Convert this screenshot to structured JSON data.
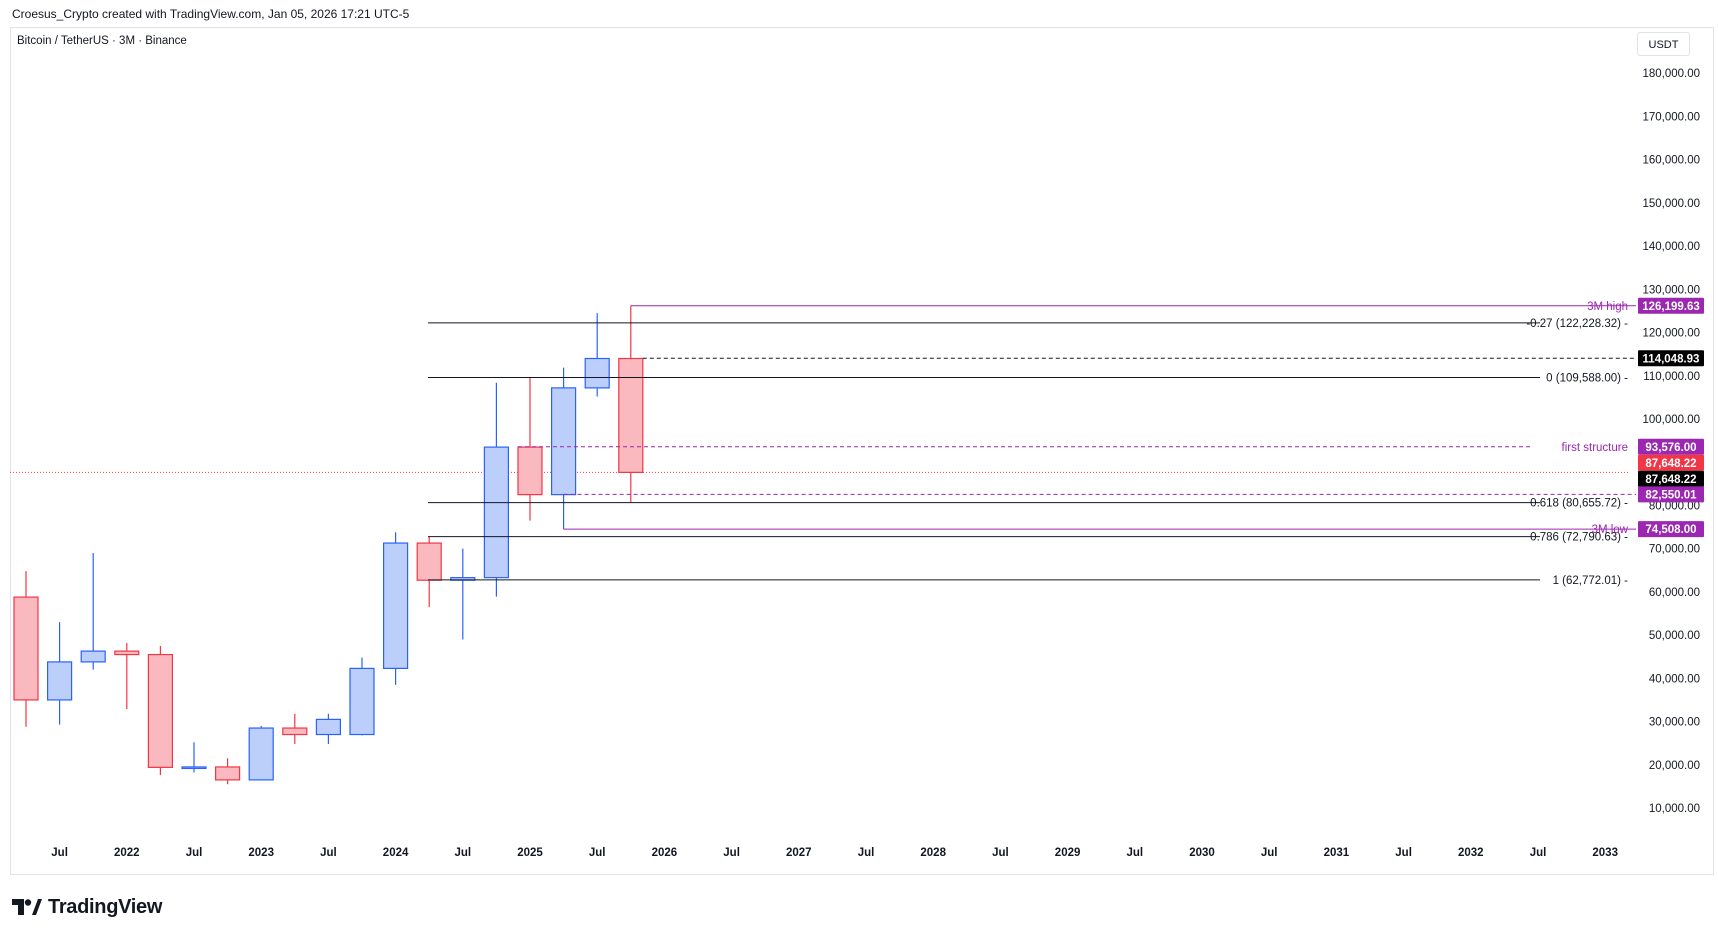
{
  "header": {
    "author_line": "Croesus_Crypto created with TradingView.com, Jan 05, 2026 17:21 UTC-5"
  },
  "chart_header": {
    "symbol_line": "Bitcoin / TetherUS · 3M · Binance",
    "currency": "USDT"
  },
  "footer": {
    "logo_text": "TradingView"
  },
  "colors": {
    "up_fill": "#bccefa",
    "up_stroke": "#2962ff",
    "down_fill": "#f9b9be",
    "down_stroke": "#f23645",
    "level_black": "#131722",
    "purple": "#9c27b0",
    "price_red": "#f23645"
  },
  "chart_data": {
    "type": "candlestick",
    "timeframe": "3M",
    "y_axis": {
      "min": 0,
      "max": 185000,
      "ticks": [
        10000,
        20000,
        30000,
        40000,
        50000,
        60000,
        70000,
        80000,
        90000,
        100000,
        110000,
        120000,
        130000,
        140000,
        150000,
        160000,
        170000,
        180000
      ],
      "tick_labels": [
        "10,000.00",
        "20,000.00",
        "30,000.00",
        "40,000.00",
        "50,000.00",
        "60,000.00",
        "70,000.00",
        "80,000.00",
        "90,000.00",
        "100,000.00",
        "110,000.00",
        "120,000.00",
        "130,000.00",
        "140,000.00",
        "150,000.00",
        "160,000.00",
        "170,000.00",
        "180,000.00"
      ]
    },
    "x_axis": {
      "labels": [
        {
          "label": "Jul",
          "idx": 1
        },
        {
          "label": "2022",
          "idx": 3
        },
        {
          "label": "Jul",
          "idx": 5
        },
        {
          "label": "2023",
          "idx": 7
        },
        {
          "label": "Jul",
          "idx": 9
        },
        {
          "label": "2024",
          "idx": 11
        },
        {
          "label": "Jul",
          "idx": 13
        },
        {
          "label": "2025",
          "idx": 15
        },
        {
          "label": "Jul",
          "idx": 17
        },
        {
          "label": "2026",
          "idx": 19
        },
        {
          "label": "Jul",
          "idx": 21
        },
        {
          "label": "2027",
          "idx": 23
        },
        {
          "label": "Jul",
          "idx": 25
        },
        {
          "label": "2028",
          "idx": 27
        },
        {
          "label": "Jul",
          "idx": 29
        },
        {
          "label": "2029",
          "idx": 31
        },
        {
          "label": "Jul",
          "idx": 33
        },
        {
          "label": "2030",
          "idx": 35
        },
        {
          "label": "Jul",
          "idx": 37
        },
        {
          "label": "2031",
          "idx": 39
        },
        {
          "label": "Jul",
          "idx": 41
        },
        {
          "label": "2032",
          "idx": 43
        },
        {
          "label": "Jul",
          "idx": 45
        },
        {
          "label": "2033",
          "idx": 47
        }
      ]
    },
    "candles": [
      {
        "idx": 0,
        "open": 58800,
        "high": 64800,
        "low": 28800,
        "close": 35000
      },
      {
        "idx": 1,
        "open": 35000,
        "high": 53000,
        "low": 29300,
        "close": 43800
      },
      {
        "idx": 2,
        "open": 43800,
        "high": 69000,
        "low": 42000,
        "close": 46300
      },
      {
        "idx": 3,
        "open": 46300,
        "high": 48200,
        "low": 32900,
        "close": 45500
      },
      {
        "idx": 4,
        "open": 45500,
        "high": 47500,
        "low": 17600,
        "close": 19400
      },
      {
        "idx": 5,
        "open": 19400,
        "high": 25200,
        "low": 18200,
        "close": 19500
      },
      {
        "idx": 6,
        "open": 19500,
        "high": 21500,
        "low": 15500,
        "close": 16500
      },
      {
        "idx": 7,
        "open": 16500,
        "high": 29000,
        "low": 16500,
        "close": 28500
      },
      {
        "idx": 8,
        "open": 28500,
        "high": 31800,
        "low": 24800,
        "close": 27000
      },
      {
        "idx": 9,
        "open": 27000,
        "high": 31800,
        "low": 24800,
        "close": 30500
      },
      {
        "idx": 10,
        "open": 27000,
        "high": 44800,
        "low": 26800,
        "close": 42300
      },
      {
        "idx": 11,
        "open": 42300,
        "high": 73800,
        "low": 38500,
        "close": 71300
      },
      {
        "idx": 12,
        "open": 71300,
        "high": 72800,
        "low": 56500,
        "close": 62700
      },
      {
        "idx": 13,
        "open": 62700,
        "high": 70000,
        "low": 49000,
        "close": 63300
      },
      {
        "idx": 14,
        "open": 63300,
        "high": 108400,
        "low": 58900,
        "close": 93500
      },
      {
        "idx": 15,
        "open": 93500,
        "high": 109500,
        "low": 76500,
        "close": 82500
      },
      {
        "idx": 16,
        "open": 82500,
        "high": 111900,
        "low": 74500,
        "close": 107200
      },
      {
        "idx": 17,
        "open": 107200,
        "high": 124500,
        "low": 105200,
        "close": 114000
      },
      {
        "idx": 18,
        "open": 114000,
        "high": 126199.63,
        "low": 80600,
        "close": 87648.22
      }
    ],
    "fib_levels": [
      {
        "ratio_label": "-0.27 (122,228.32)",
        "price": 122228.32
      },
      {
        "ratio_label": "0 (109,588.00)",
        "price": 109588.0
      },
      {
        "ratio_label": "0.618 (80,655.72)",
        "price": 80655.72
      },
      {
        "ratio_label": "0.786 (72,790.63)",
        "price": 72790.63
      },
      {
        "ratio_label": "1 (62,772.01)",
        "price": 62772.01
      }
    ],
    "annotations": [
      {
        "name": "3M high",
        "price": 126199.63,
        "tag": "126,199.63"
      },
      {
        "name": "first structure",
        "price": 93576.0,
        "tag": "93,576.00"
      },
      {
        "name": "",
        "price": 82550.01,
        "tag": "82,550.01"
      },
      {
        "name": "3M low",
        "price": 74508.0,
        "tag": "74,508.00"
      }
    ],
    "price_tags": [
      {
        "price": 114048.93,
        "label": "114,048.93",
        "style": "black"
      },
      {
        "price": 87648.22,
        "label": "87,648.22",
        "style": "red"
      },
      {
        "price": 87648.22,
        "label": "87,648.22",
        "style": "black"
      }
    ],
    "current_price": 87648.22
  }
}
